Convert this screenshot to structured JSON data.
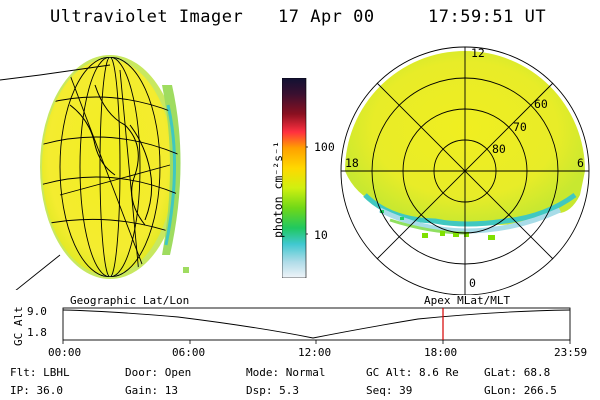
{
  "header": {
    "instrument": "Ultraviolet Imager",
    "date": "17 Apr 00",
    "time": "17:59:51 UT"
  },
  "colorbar": {
    "unit_label": "photon cm⁻²s⁻¹",
    "ticks": [
      "100",
      "10"
    ],
    "colors": [
      "#111133",
      "#5a1a2a",
      "#a01010",
      "#e01020",
      "#ff4040",
      "#ff9a00",
      "#ffd000",
      "#f7f020",
      "#c8ee10",
      "#7fe000",
      "#20d060",
      "#40c8c0",
      "#a8d8e8",
      "#e8f0f8"
    ]
  },
  "polar": {
    "labels": {
      "top": "12",
      "left": "18",
      "right": "6",
      "bottom": "0"
    },
    "rings": [
      "60",
      "70",
      "80"
    ]
  },
  "timeline": {
    "axis_label": "GC Alt",
    "y_ticks": [
      "9.0",
      "1.8"
    ],
    "left_title": "Geographic Lat/Lon",
    "right_title": "Apex MLat/MLT",
    "x_ticks": [
      "00:00",
      "06:00",
      "12:00",
      "18:00",
      "23:59"
    ],
    "marker_color": "#d40000"
  },
  "info": {
    "row1": [
      {
        "label": "Flt: LBHL"
      },
      {
        "label": "Door: Open"
      },
      {
        "label": "Mode: Normal"
      },
      {
        "label": "GC Alt: 8.6 Re"
      },
      {
        "label": "GLat:  68.8"
      }
    ],
    "row2": [
      {
        "label": "IP: 36.0"
      },
      {
        "label": "Gain: 13"
      },
      {
        "label": "Dsp:     5.3"
      },
      {
        "label": "Seq: 39"
      },
      {
        "label": "GLon: 266.5"
      }
    ]
  }
}
